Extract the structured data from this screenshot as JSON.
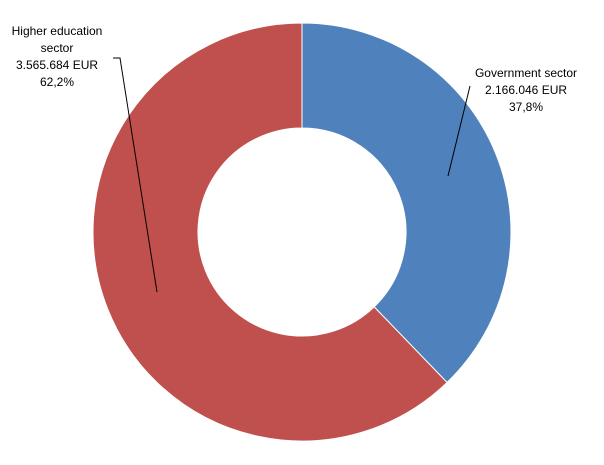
{
  "chart_data": {
    "type": "pie",
    "variant": "donut",
    "title": "",
    "legend": "none",
    "series": [
      {
        "values": [
          2166046,
          3565684
        ]
      }
    ],
    "categories": [
      "Government sector",
      "Higher education sector"
    ],
    "slices": [
      {
        "label": "Government sector",
        "value": 2166046,
        "percent": 37.8,
        "color": "#4F81BD",
        "label_lines": [
          "Government sector",
          "2.166.046 EUR",
          "37,8%"
        ]
      },
      {
        "label": "Higher education sector",
        "value": 3565684,
        "percent": 62.2,
        "color": "#C0504D",
        "label_lines": [
          "Higher education",
          "sector",
          "3.565.684 EUR",
          "62,2%"
        ]
      }
    ]
  }
}
